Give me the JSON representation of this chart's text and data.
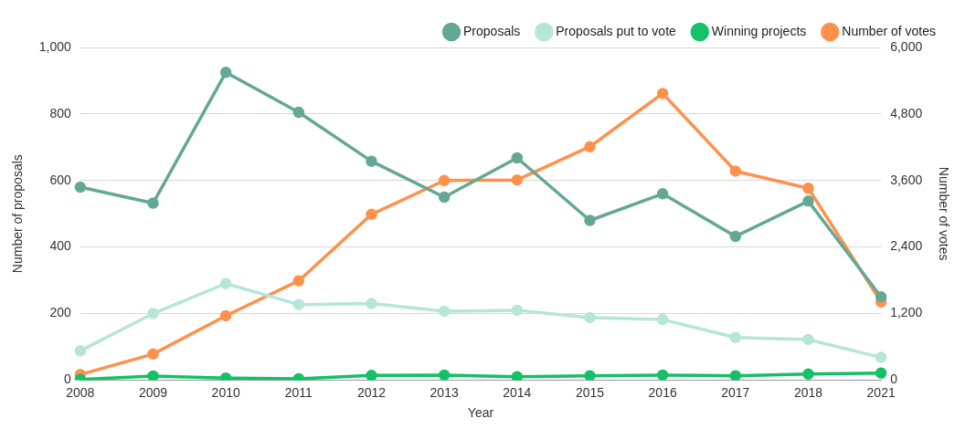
{
  "chart_data": {
    "type": "line",
    "xlabel": "Year",
    "ylabel": "Number of proposals",
    "y2label": "Number of votes",
    "categories": [
      "2008",
      "2009",
      "2010",
      "2011",
      "2012",
      "2013",
      "2014",
      "2015",
      "2016",
      "2017",
      "2018",
      "2021"
    ],
    "series": [
      {
        "name": "Proposals",
        "color": "#64a894",
        "values": [
          580,
          532,
          925,
          805,
          658,
          550,
          668,
          480,
          560,
          432,
          538,
          250
        ]
      },
      {
        "name": "Proposals put to vote",
        "color": "#b5e6d8",
        "values": [
          88,
          200,
          290,
          227,
          230,
          207,
          210,
          188,
          182,
          128,
          122,
          68
        ]
      },
      {
        "name": "Winning projects",
        "color": "#14c068",
        "values": [
          2,
          12,
          6,
          4,
          14,
          15,
          10,
          13,
          15,
          13,
          18,
          21
        ]
      },
      {
        "name": "Number of votes",
        "color": "#ff914d",
        "axis": "y2",
        "values": [
          100,
          470,
          1160,
          1790,
          2990,
          3600,
          3610,
          4210,
          5170,
          3770,
          3460,
          1410
        ]
      }
    ],
    "ylim": [
      0,
      1000
    ],
    "yticks": [
      0,
      200,
      400,
      600,
      800,
      {
        "value": 1000,
        "label": "1,000"
      }
    ],
    "y2lim": [
      0,
      6000
    ],
    "y2ticks": [
      0,
      {
        "value": 1200,
        "label": "1,200"
      },
      {
        "value": 2400,
        "label": "2,400"
      },
      {
        "value": 3600,
        "label": "3,600"
      },
      {
        "value": 4800,
        "label": "4,800"
      },
      {
        "value": 6000,
        "label": "6,000"
      }
    ],
    "grid": "y",
    "legend": "top right",
    "marker": "circle",
    "line_style": "solid"
  }
}
